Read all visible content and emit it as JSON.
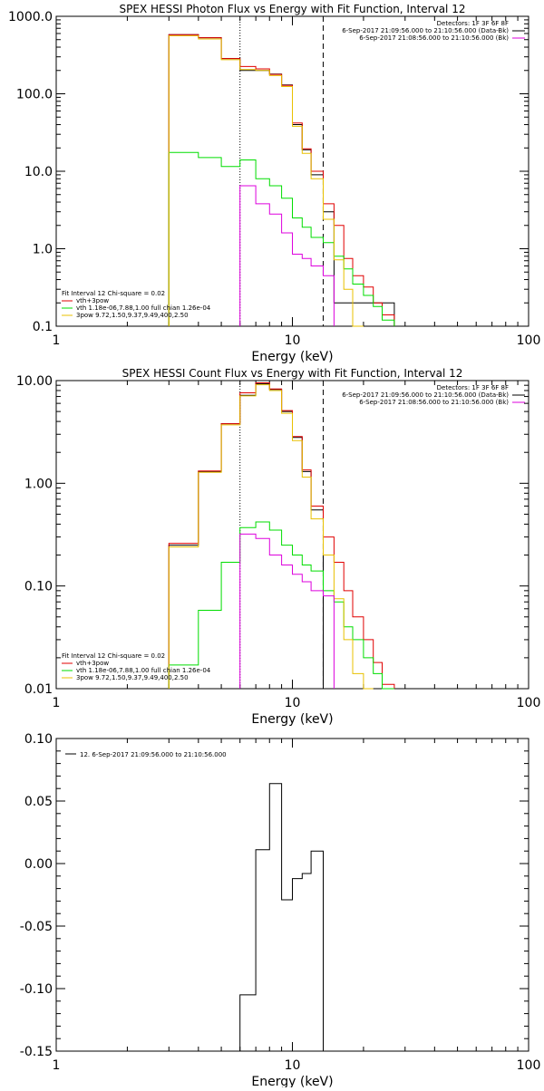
{
  "colors": {
    "black": "#000000",
    "red": "#e00000",
    "green": "#00dd00",
    "orange": "#e8c000",
    "magenta": "#dd00dd"
  },
  "chart_data": [
    {
      "type": "line",
      "title": "SPEX HESSI Photon Flux vs Energy with Fit Function, Interval 12",
      "xlabel": "Energy (keV)",
      "ylabel": "",
      "xscale": "log",
      "yscale": "log",
      "xlim": [
        1,
        100
      ],
      "ylim": [
        0.1,
        1000
      ],
      "xticks": [
        "1",
        "10",
        "100"
      ],
      "yticks": [
        "0.1",
        "1.0",
        "10.0",
        "100.0",
        "1000.0"
      ],
      "info_lines": [
        "Detectors: 1F 3F 6F 8F",
        "6-Sep-2017 21:09:56.000 to 21:10:56.000 (Data-Bk)",
        "6-Sep-2017 21:08:56.000 to 21:10:56.000 (Bk)"
      ],
      "legend_lines": [
        "Fit Interval 12   Chi-square = 0.02",
        "vth+3pow",
        "vth 1.18e-06,7.88,1.00  full chian 1.26e-04",
        "3pow 9.72,1.50,9.37,9.49,400,2.50"
      ],
      "edges": [
        3,
        4,
        5,
        6,
        7,
        8,
        9,
        10,
        11,
        12,
        13.5,
        15,
        16.5,
        18,
        20,
        22,
        24,
        27
      ],
      "series": [
        {
          "role": "data",
          "color": "black",
          "values": [
            580,
            530,
            285,
            200,
            200,
            180,
            130,
            40,
            19,
            9,
            3,
            0.2,
            0.2,
            0.2,
            0.2,
            0.2,
            0.2
          ]
        },
        {
          "role": "total",
          "color": "red",
          "values": [
            580,
            530,
            285,
            225,
            210,
            178,
            128,
            42,
            19.5,
            10,
            3.8,
            2.0,
            0.75,
            0.45,
            0.32,
            0.2,
            0.14
          ]
        },
        {
          "role": "component",
          "color": "green",
          "values": [
            17.5,
            15,
            11.5,
            14,
            8,
            6.5,
            4.5,
            2.5,
            1.9,
            1.4,
            1.2,
            0.8,
            0.55,
            0.35,
            0.25,
            0.18,
            0.12
          ]
        },
        {
          "role": "component",
          "color": "orange",
          "values": [
            560,
            510,
            275,
            205,
            200,
            172,
            124,
            38,
            17,
            8,
            2.4,
            0.72,
            0.3,
            0.09
          ]
        },
        {
          "role": "component",
          "color": "magenta",
          "values": [
            null,
            null,
            null,
            6.5,
            3.8,
            2.8,
            1.6,
            0.85,
            0.75,
            0.6,
            0.45
          ]
        }
      ],
      "vlines": [
        {
          "x": 6,
          "style": "dotted"
        },
        {
          "x": 13.5,
          "style": "dashed"
        }
      ]
    },
    {
      "type": "line",
      "title": "SPEX HESSI Count Flux vs Energy with Fit Function, Interval 12",
      "xlabel": "Energy (keV)",
      "ylabel": "",
      "xscale": "log",
      "yscale": "log",
      "xlim": [
        1,
        100
      ],
      "ylim": [
        0.01,
        10
      ],
      "xticks": [
        "1",
        "10",
        "100"
      ],
      "yticks": [
        "0.01",
        "0.10",
        "1.00",
        "10.00"
      ],
      "info_lines": [
        "Detectors: 1F 3F 6F 8F",
        "6-Sep-2017 21:09:56.000 to 21:10:56.000 (Data-Bk)",
        "6-Sep-2017 21:08:56.000 to 21:10:56.000 (Bk)"
      ],
      "legend_lines": [
        "Fit Interval 12   Chi-square = 0.02",
        "vth+3pow",
        "vth 1.18e-06,7.88,1.00  full chian 1.26e-04",
        "3pow 9.72,1.50,9.37,9.49,400,2.50"
      ],
      "edges": [
        3,
        4,
        5,
        6,
        7,
        8,
        9,
        10,
        11,
        12,
        13.5,
        15,
        16.5,
        18,
        20,
        22,
        24,
        27
      ],
      "series": [
        {
          "role": "data",
          "color": "black",
          "values": [
            0.25,
            1.3,
            3.8,
            7.2,
            9.3,
            8.2,
            5,
            2.8,
            1.3,
            0.55,
            0.01,
            0.01,
            0.01,
            0.01,
            0.01,
            0.01,
            0.01
          ]
        },
        {
          "role": "total",
          "color": "red",
          "values": [
            0.26,
            1.32,
            3.8,
            7.6,
            9.5,
            8.3,
            5.1,
            2.85,
            1.35,
            0.6,
            0.3,
            0.17,
            0.09,
            0.05,
            0.03,
            0.018,
            0.011
          ]
        },
        {
          "role": "component",
          "color": "green",
          "values": [
            0.017,
            0.058,
            0.17,
            0.37,
            0.42,
            0.35,
            0.25,
            0.2,
            0.16,
            0.14,
            0.09,
            0.07,
            0.04,
            0.03,
            0.02,
            0.014,
            0.01
          ]
        },
        {
          "role": "component",
          "color": "orange",
          "values": [
            0.24,
            1.28,
            3.7,
            7.1,
            9.1,
            8.0,
            4.8,
            2.6,
            1.15,
            0.45,
            0.2,
            0.075,
            0.03,
            0.014,
            0.008
          ]
        },
        {
          "role": "component",
          "color": "magenta",
          "values": [
            null,
            null,
            null,
            0.32,
            0.29,
            0.2,
            0.16,
            0.13,
            0.11,
            0.09,
            0.08
          ]
        }
      ],
      "vlines": [
        {
          "x": 6,
          "style": "dotted"
        },
        {
          "x": 13.5,
          "style": "dashed"
        }
      ]
    },
    {
      "type": "line",
      "title": "",
      "xlabel": "Energy (keV)",
      "ylabel": "",
      "xscale": "log",
      "yscale": "linear",
      "xlim": [
        1,
        100
      ],
      "ylim": [
        -0.15,
        0.1
      ],
      "xticks": [
        "1",
        "10",
        "100"
      ],
      "yticks": [
        "-0.15",
        "-0.10",
        "-0.05",
        "0.00",
        "0.05",
        "0.10"
      ],
      "legend_lines": [
        "12.  6-Sep-2017 21:09:56.000 to 21:10:56.000"
      ],
      "edges": [
        6,
        7,
        8,
        9,
        10,
        11,
        12,
        13.5
      ],
      "series": [
        {
          "role": "residuals",
          "color": "black",
          "values": [
            -0.105,
            0.011,
            0.064,
            -0.029,
            -0.012,
            -0.008,
            0.01
          ]
        }
      ]
    }
  ]
}
